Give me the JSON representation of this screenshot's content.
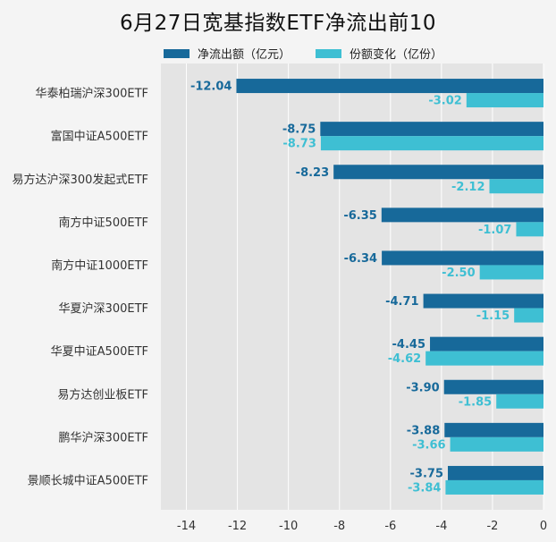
{
  "title": "6月27日宽基指数ETF净流出前10",
  "colors": {
    "net_outflow": "#17699a",
    "share_change": "#3ebfd3"
  },
  "chart_data": {
    "type": "bar",
    "orientation": "horizontal",
    "title": "6月27日宽基指数ETF净流出前10",
    "categories": [
      "华泰柏瑞沪深300ETF",
      "富国中证A500ETF",
      "易方达沪深300发起式ETF",
      "南方中证500ETF",
      "南方中证1000ETF",
      "华夏沪深300ETF",
      "华夏中证A500ETF",
      "易方达创业板ETF",
      "鹏华沪深300ETF",
      "景顺长城中证A500ETF"
    ],
    "series": [
      {
        "name": "净流出额（亿元）",
        "values": [
          -12.04,
          -8.75,
          -8.23,
          -6.35,
          -6.34,
          -4.71,
          -4.45,
          -3.9,
          -3.88,
          -3.75
        ]
      },
      {
        "name": "份额变化（亿份）",
        "values": [
          -3.02,
          -8.73,
          -2.12,
          -1.07,
          -2.5,
          -1.15,
          -4.62,
          -1.85,
          -3.66,
          -3.84
        ]
      }
    ],
    "data_labels": [
      [
        "-12.04",
        "-8.75",
        "-8.23",
        "-6.35",
        "-6.34",
        "-4.71",
        "-4.45",
        "-3.90",
        "-3.88",
        "-3.75"
      ],
      [
        "-3.02",
        "-8.73",
        "-2.12",
        "-1.07",
        "-2.50",
        "-1.15",
        "-4.62",
        "-1.85",
        "-3.66",
        "-3.84"
      ]
    ],
    "xlim": [
      -15,
      0
    ],
    "xticks": [
      -14,
      -12,
      -10,
      -8,
      -6,
      -4,
      -2,
      0
    ],
    "xlabel": "",
    "ylabel": "",
    "grid": true,
    "legend_position": "top"
  }
}
